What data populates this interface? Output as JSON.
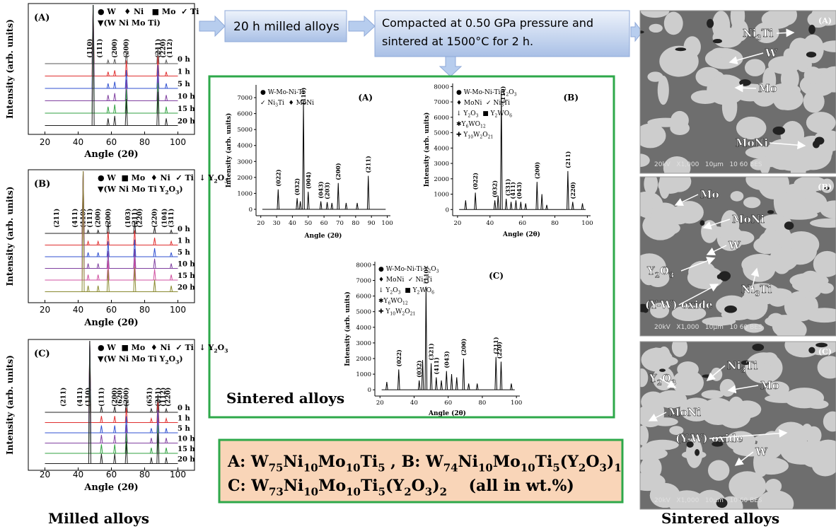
{
  "flow": {
    "step1": "20 h milled alloys",
    "step2_line1": "Compacted at 0.50 GPa pressure and",
    "step2_line2": "sintered at 1500°C for 2 h."
  },
  "milled": {
    "caption": "Milled alloys",
    "panels": [
      {
        "label": "(A)",
        "legend": [
          "● W   ♦ Ni   ■ Mo  ✓ Ti",
          "▼(W Ni Mo Ti)"
        ],
        "ylabel": "Intensity (arb. units)",
        "xlabel": "Angle (2θ)",
        "xlim": [
          10,
          110
        ],
        "xticks": [
          20,
          40,
          60,
          80,
          100
        ],
        "times": [
          "0 h",
          "1 h",
          "5 h",
          "10 h",
          "15 h",
          "20 h"
        ],
        "colors": [
          "#555555",
          "#e03030",
          "#3050d0",
          "#8040a0",
          "#30a040",
          "#202020"
        ],
        "peaks": {
          "angle": [
            49,
            58,
            62,
            69,
            88,
            93
          ],
          "height": [
            100,
            6,
            8,
            22,
            28,
            6
          ]
        },
        "hkl": {
          "labels": [
            "(110)",
            "(111)",
            "(200)",
            "(200)",
            "(211)",
            "(220)",
            "(112)"
          ],
          "angle": [
            47,
            53,
            62,
            69,
            88,
            91,
            95
          ]
        }
      },
      {
        "label": "(B)",
        "legend": [
          [
            "● W  ■ Mo  ♦ Ni  ✓ Ti  ↓ Y",
            "2",
            "O",
            "3"
          ],
          [
            "▼(W Ni Mo Ti Y",
            "2",
            "O",
            "3",
            ")"
          ]
        ],
        "ylabel": "Intensity (arb. units)",
        "xlabel": "Angle (2θ)",
        "xlim": [
          10,
          110
        ],
        "xticks": [
          20,
          40,
          60,
          80,
          100
        ],
        "times": [
          "0 h",
          "1 h",
          "5 h",
          "10 h",
          "15 h",
          "20 h"
        ],
        "colors": [
          "#222222",
          "#e03030",
          "#3050d0",
          "#8040a0",
          "#d050a0",
          "#8a8a30"
        ],
        "peaks": {
          "angle": [
            43,
            46,
            52,
            58,
            74,
            86,
            96
          ],
          "height": [
            100,
            5,
            5,
            18,
            20,
            10,
            5
          ]
        },
        "hkl": {
          "labels": [
            "(211)",
            "(411)",
            "(110)",
            "(111)",
            "(200)",
            "(200)",
            "(103)",
            "(211)",
            "(220)",
            "(220)",
            "(104)",
            "(311)"
          ],
          "angle": [
            27,
            38,
            43,
            47,
            52,
            58,
            70,
            74,
            77,
            86,
            92,
            96
          ]
        }
      },
      {
        "label": "(C)",
        "legend": [
          [
            "● W  ■ Mo  ♦ Ni  ✓ Ti  ↓ Y",
            "2",
            "O",
            "3"
          ],
          [
            "▼(W Ni Mo Ti Y",
            "2",
            "O",
            "3",
            ")"
          ]
        ],
        "ylabel": "Intensity (arb. units)",
        "xlabel": "Angle (2θ)",
        "xlim": [
          10,
          110
        ],
        "xticks": [
          20,
          40,
          60,
          80,
          100
        ],
        "times": [
          "0 h",
          "1 h",
          "5 h",
          "10 h",
          "15 h",
          "20 h"
        ],
        "colors": [
          "#222222",
          "#e03030",
          "#3050d0",
          "#8040a0",
          "#30a040",
          "#202020"
        ],
        "peaks": {
          "angle": [
            47,
            54,
            62,
            69,
            84,
            88,
            93
          ],
          "height": [
            100,
            8,
            8,
            18,
            5,
            25,
            5
          ]
        },
        "hkl": {
          "labels": [
            "(211)",
            "(411)",
            "(110)",
            "(111)",
            "(200)",
            "(620)",
            "(200)",
            "(651)",
            "(211)",
            "(112)",
            "(220)"
          ],
          "angle": [
            31,
            41,
            46,
            54,
            62,
            65,
            69,
            83,
            88,
            91,
            94
          ]
        }
      }
    ]
  },
  "sintered_xrd": {
    "caption": "Sintered alloys",
    "charts": [
      {
        "label": "(A)",
        "legend": [
          "● W-Mo-Ni-Ti",
          [
            "✓ Ni",
            "3",
            "Ti  ♦ MoNi"
          ]
        ],
        "ylabel": "Intensity (arb. units)",
        "xlabel": "Angle (2θ)",
        "xlim": [
          17,
          102
        ],
        "xticks": [
          20,
          30,
          40,
          50,
          60,
          70,
          80,
          90,
          100
        ],
        "ylim": [
          -400,
          7800
        ],
        "yticks": [
          0,
          1000,
          2000,
          3000,
          4000,
          5000,
          6000,
          7000
        ],
        "peaks": {
          "angle": [
            31,
            43,
            45,
            47,
            50,
            58,
            62,
            65,
            69,
            74,
            81,
            88
          ],
          "intensity": [
            1250,
            700,
            500,
            6800,
            1100,
            500,
            450,
            400,
            1650,
            400,
            400,
            2100
          ]
        },
        "hkl": {
          "labels": [
            "(022)",
            "(032)",
            "(004)",
            "(110)",
            "(043)",
            "(203)",
            "(200)",
            "(211)"
          ],
          "angle": [
            31,
            43,
            50,
            47,
            58,
            62,
            69,
            88
          ]
        }
      },
      {
        "label": "(B)",
        "legend": [
          [
            "● W-Mo-Ni-Ti-Y",
            "2",
            "O",
            "3"
          ],
          [
            "♦ MoNi  ✓ Ni",
            "3",
            "Ti"
          ],
          [
            "↓ Y",
            "2",
            "O",
            "3",
            "  ■ Y",
            "2",
            "WO",
            "6"
          ],
          [
            "✱Y",
            "6",
            "WO",
            "12"
          ],
          [
            "✚ Y",
            "10",
            "W",
            "2",
            "O",
            "21"
          ]
        ],
        "ylabel": "Intensity (arb. units)",
        "xlabel": "Angle (2θ)",
        "xlim": [
          17,
          102
        ],
        "xticks": [
          20,
          40,
          60,
          80,
          100
        ],
        "ylim": [
          -400,
          8200
        ],
        "yticks": [
          0,
          1000,
          2000,
          3000,
          4000,
          5000,
          6000,
          7000,
          8000
        ],
        "peaks": {
          "angle": [
            25,
            31,
            43,
            45,
            47,
            50,
            53,
            56,
            59,
            62,
            69,
            72,
            75,
            88,
            91,
            97
          ],
          "intensity": [
            600,
            1100,
            600,
            900,
            7600,
            700,
            500,
            600,
            500,
            400,
            1800,
            1000,
            300,
            2500,
            500,
            400
          ]
        },
        "hkl": {
          "labels": [
            "(022)",
            "(032)",
            "(110)",
            "(331)",
            "(411)",
            "(043)",
            "(200)",
            "(211)",
            "(220)"
          ],
          "angle": [
            31,
            43,
            48,
            51,
            54,
            58,
            69,
            88,
            91
          ]
        }
      },
      {
        "label": "(C)",
        "legend": [
          [
            "● W-Mo-Ni-Ti-Y",
            "2",
            "O",
            "3"
          ],
          [
            "♦ MoNi  ✓ Ni",
            "3",
            "Ti"
          ],
          [
            "↓ Y",
            "2",
            "O",
            "3",
            "  ■ Y",
            "2",
            "WO",
            "6"
          ],
          [
            "✱Y",
            "6",
            "WO",
            "12"
          ],
          [
            "✚ Y",
            "10",
            "W",
            "2",
            "O",
            "21"
          ]
        ],
        "ylabel": "Intensity (arb. units)",
        "xlabel": "Angle (2θ)",
        "xlim": [
          17,
          102
        ],
        "xticks": [
          20,
          40,
          60,
          80,
          100
        ],
        "ylim": [
          -400,
          8200
        ],
        "yticks": [
          0,
          1000,
          2000,
          3000,
          4000,
          5000,
          6000,
          7000,
          8000
        ],
        "peaks": {
          "angle": [
            24,
            31,
            43,
            45,
            47,
            50,
            53,
            56,
            59,
            62,
            65,
            69,
            72,
            77,
            88,
            91,
            97
          ],
          "intensity": [
            500,
            1300,
            600,
            1900,
            6600,
            1700,
            800,
            600,
            1200,
            1000,
            800,
            2000,
            400,
            400,
            2100,
            1800,
            400
          ]
        },
        "hkl": {
          "labels": [
            "(022)",
            "(032)",
            "(110)",
            "(321)",
            "(411)",
            "(043)",
            "(200)",
            "(211)",
            "(220)"
          ],
          "angle": [
            31,
            43,
            47,
            50,
            53,
            59,
            69,
            88,
            90
          ]
        }
      }
    ]
  },
  "composition": {
    "lines": [
      [
        "A: W",
        "75",
        "Ni",
        "10",
        "Mo",
        "10",
        "Ti",
        "5",
        " , B: W",
        "74",
        "Ni",
        "10",
        "Mo",
        "10",
        "Ti",
        "5",
        "(Y",
        "2",
        "O",
        "3",
        ")",
        "1"
      ],
      [
        "C: W",
        "73",
        "Ni",
        "10",
        "Mo",
        "10",
        "Ti",
        "5",
        "(Y",
        "2",
        "O",
        "3",
        ")",
        "2",
        "    (all in wt.%)"
      ]
    ]
  },
  "micrographs": {
    "caption": "Sintered alloys",
    "images": [
      {
        "label": "(A)",
        "footer": "20kV   X1,000   10μm   10 60 BES",
        "annotations": [
          [
            "Ni",
            "3",
            "Ti"
          ],
          "W",
          "Mo",
          "MoNi"
        ]
      },
      {
        "label": "(B)",
        "footer": "20kV   X1,000   10μm   10 60 BES",
        "annotations": [
          "Mo",
          "MoNi",
          "W",
          [
            "Y",
            "2",
            "O",
            "3"
          ],
          [
            "Ni",
            "3",
            "Ti"
          ],
          "(Y-W) oxide"
        ]
      },
      {
        "label": "(C)",
        "footer": "20kV   X1,000   10μm   10 60 BES",
        "annotations": [
          [
            "Y",
            "2",
            "O",
            "3"
          ],
          [
            "Ni",
            "3",
            "Ti"
          ],
          "Mo",
          "MoNi",
          "(Y-W) oxide",
          "W"
        ]
      }
    ]
  }
}
